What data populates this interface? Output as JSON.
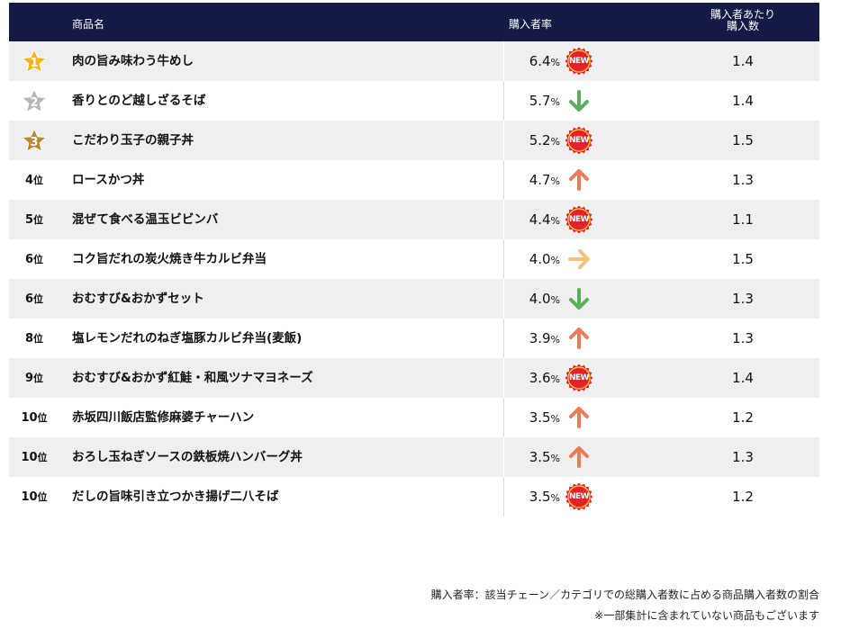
{
  "header": {
    "product_name": "商品名",
    "purchase_rate": "購入者率",
    "per_buyer_line1": "購入者あたり",
    "per_buyer_line2": "購入数"
  },
  "rows": [
    {
      "rank": "1",
      "rank_suffix": "",
      "name": "肉の旨み味わう牛めし",
      "rate": "6.4",
      "count": "1.4",
      "trend": "new",
      "medal": "gold"
    },
    {
      "rank": "2",
      "rank_suffix": "",
      "name": "香りとのど越しざるそば",
      "rate": "5.7",
      "count": "1.4",
      "trend": "down",
      "medal": "silver"
    },
    {
      "rank": "3",
      "rank_suffix": "",
      "name": "こだわり玉子の親子丼",
      "rate": "5.2",
      "count": "1.5",
      "trend": "new",
      "medal": "bronze"
    },
    {
      "rank": "4",
      "rank_suffix": "位",
      "name": "ロースかつ丼",
      "rate": "4.7",
      "count": "1.3",
      "trend": "up"
    },
    {
      "rank": "5",
      "rank_suffix": "位",
      "name": "混ぜて食べる温玉ビビンバ",
      "rate": "4.4",
      "count": "1.1",
      "trend": "new"
    },
    {
      "rank": "6",
      "rank_suffix": "位",
      "name": "コク旨だれの炭火焼き牛カルビ弁当",
      "rate": "4.0",
      "count": "1.5",
      "trend": "flat"
    },
    {
      "rank": "6",
      "rank_suffix": "位",
      "name": "おむすび&おかずセット",
      "rate": "4.0",
      "count": "1.3",
      "trend": "down"
    },
    {
      "rank": "8",
      "rank_suffix": "位",
      "name": "塩レモンだれのねぎ塩豚カルビ弁当(麦飯)",
      "rate": "3.9",
      "count": "1.3",
      "trend": "up"
    },
    {
      "rank": "9",
      "rank_suffix": "位",
      "name": "おむすび&おかず紅鮭・和風ツナマヨネーズ",
      "rate": "3.6",
      "count": "1.4",
      "trend": "new"
    },
    {
      "rank": "10",
      "rank_suffix": "位",
      "name": "赤坂四川飯店監修麻婆チャーハン",
      "rate": "3.5",
      "count": "1.2",
      "trend": "up"
    },
    {
      "rank": "10",
      "rank_suffix": "位",
      "name": "おろし玉ねぎソースの鉄板焼ハンバーグ丼",
      "rate": "3.5",
      "count": "1.3",
      "trend": "up"
    },
    {
      "rank": "10",
      "rank_suffix": "位",
      "name": "だしの旨味引き立つかき揚げ二八そば",
      "rate": "3.5",
      "count": "1.2",
      "trend": "new"
    }
  ],
  "percent_sign": "%",
  "new_label": "NEW",
  "notes": {
    "line1": "購入者率：該当チェーン／カテゴリでの総購入者数に占める商品購入者数の割合",
    "line2": "※一部集計に含まれていない商品もございます"
  },
  "colors": {
    "header_bg": "#131a45",
    "row_alt_bg": "#efefef",
    "arrow_up": "#f07a55",
    "arrow_down": "#5aae5a",
    "arrow_flat": "#f5c078",
    "new_badge": "#e8202a",
    "gold": "#f2b320",
    "silver": "#b5b5b5",
    "bronze": "#b8862d"
  },
  "icons": {
    "up": "arrow-up-icon",
    "down": "arrow-down-icon",
    "flat": "arrow-right-icon",
    "new": "new-badge-icon",
    "medal": "star-medal-icon"
  }
}
